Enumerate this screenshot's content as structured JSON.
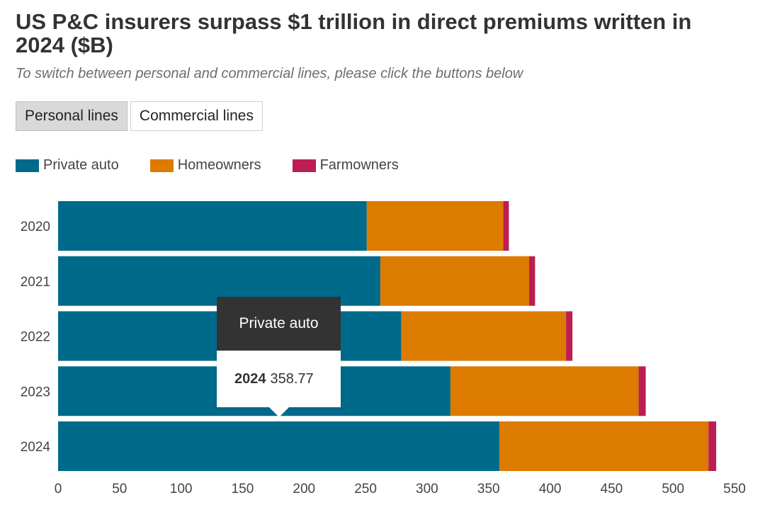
{
  "chart_data": {
    "type": "bar",
    "orientation": "horizontal",
    "stacked": true,
    "title": "US P&C insurers surpass $1 trillion in direct premiums written in 2024 ($B)",
    "subtitle": "To switch between personal and commercial lines, please click the buttons below",
    "categories": [
      "2020",
      "2021",
      "2022",
      "2023",
      "2024"
    ],
    "series": [
      {
        "name": "Private auto",
        "color": "#006a8a",
        "values": [
          251,
          262,
          279,
          319,
          358.77
        ]
      },
      {
        "name": "Homeowners",
        "color": "#dd7a00",
        "values": [
          111,
          121,
          134,
          153,
          170
        ]
      },
      {
        "name": "Farmowners",
        "color": "#bd1e52",
        "values": [
          4.5,
          4.8,
          5.2,
          5.8,
          6.3
        ]
      }
    ],
    "xlim": [
      0,
      550
    ],
    "xticks": [
      "0",
      "50",
      "100",
      "150",
      "200",
      "250",
      "300",
      "350",
      "400",
      "450",
      "500",
      "550"
    ],
    "xlabel": "",
    "ylabel": "",
    "grid": false,
    "legend_position": "top-left"
  },
  "buttons": {
    "personal_label": "Personal lines",
    "commercial_label": "Commercial lines"
  },
  "tooltip": {
    "series": "Private auto",
    "year": "2024",
    "value": "358.77"
  }
}
